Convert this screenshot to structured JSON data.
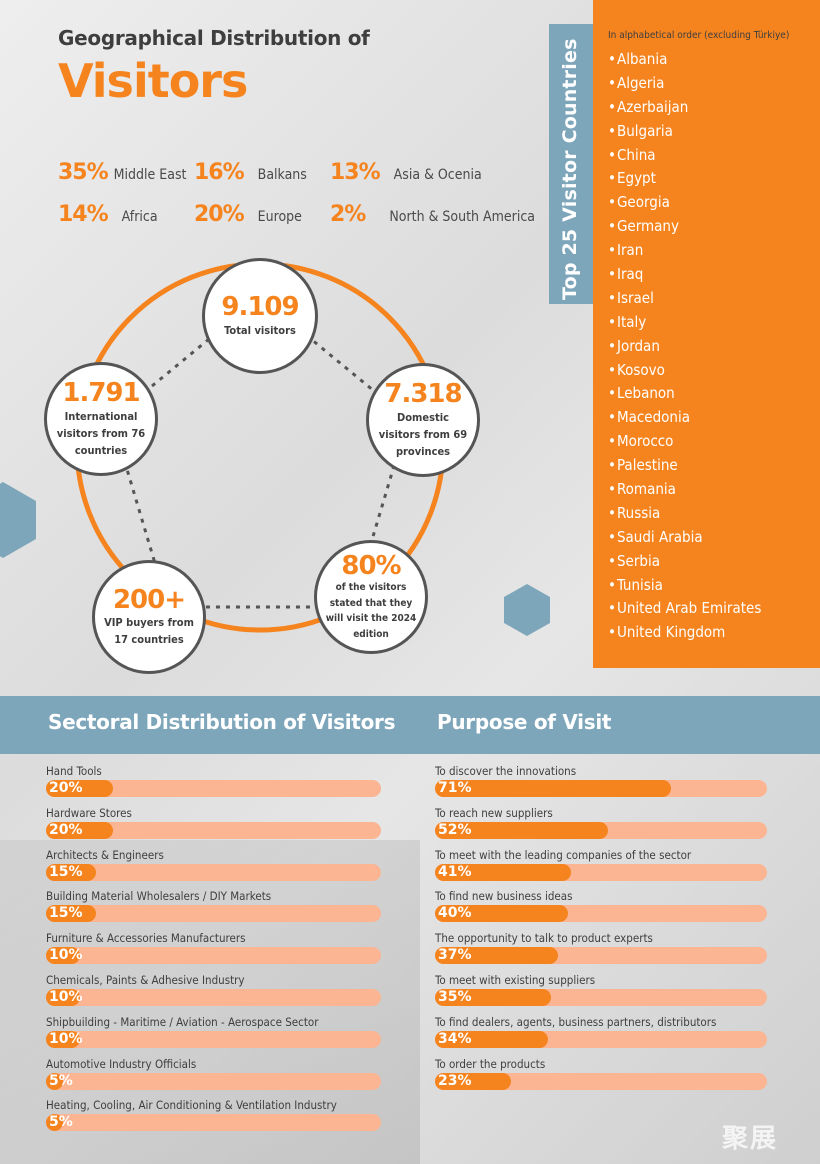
{
  "header": {
    "title_line1": "Geographical Distribution of",
    "title_line2": "Visitors"
  },
  "regions": [
    {
      "pct": "35%",
      "name": "Middle East"
    },
    {
      "pct": "16%",
      "name": "Balkans"
    },
    {
      "pct": "13%",
      "name": "Asia & Ocenia"
    },
    {
      "pct": "14%",
      "name": "Africa"
    },
    {
      "pct": "20%",
      "name": "Europe"
    },
    {
      "pct": "2%",
      "name": "North & South America"
    }
  ],
  "stats": [
    {
      "value": "9.109",
      "label": "Total visitors"
    },
    {
      "value": "7.318",
      "label": "Domestic visitors from 69 provinces"
    },
    {
      "value": "80%",
      "label": "of the visitors stated that they will visit the 2024 edition"
    },
    {
      "value": "200+",
      "label": "VIP buyers from 17 countries"
    },
    {
      "value": "1.791",
      "label": "International visitors from 76 countries"
    }
  ],
  "countries_panel": {
    "title": "Top 25 Visitor Countries",
    "note": "In alphabetical order (excluding Türkiye)",
    "countries": [
      "Albania",
      "Algeria",
      "Azerbaijan",
      "Bulgaria",
      "China",
      "Egypt",
      "Georgia",
      "Germany",
      "Iran",
      "Iraq",
      "Israel",
      "Italy",
      "Jordan",
      "Kosovo",
      "Lebanon",
      "Macedonia",
      "Morocco",
      "Palestine",
      "Romania",
      "Russia",
      "Saudi Arabia",
      "Serbia",
      "Tunisia",
      "United Arab Emirates",
      "United Kingdom"
    ]
  },
  "colors": {
    "accent": "#f5841f",
    "track": "#fbb592",
    "band": "#7ea6bb"
  },
  "chart_data": [
    {
      "type": "bar",
      "title": "Sectoral Distribution of Visitors",
      "categories": [
        "Hand Tools",
        "Hardware Stores",
        "Architects & Engineers",
        "Building Material Wholesalers / DIY Markets",
        "Furniture & Accessories Manufacturers",
        "Chemicals, Paints & Adhesive Industry",
        "Shipbuilding - Maritime / Aviation - Aerospace Sector",
        "Automotive Industry Officials",
        "Heating, Cooling, Air Conditioning & Ventilation Industry"
      ],
      "values": [
        20,
        20,
        15,
        15,
        10,
        10,
        10,
        5,
        5
      ],
      "value_labels": [
        "20%",
        "20%",
        "15%",
        "15%",
        "10%",
        "10%",
        "10%",
        "5%",
        "5%"
      ],
      "xlim": [
        0,
        100
      ]
    },
    {
      "type": "bar",
      "title": "Purpose of Visit",
      "categories": [
        "To discover the innovations",
        "To reach new suppliers",
        "To meet with the leading companies of the sector",
        "To find new business ideas",
        "The opportunity to talk to product experts",
        "To meet with existing suppliers",
        "To find dealers, agents, business partners, distributors",
        "To order the products"
      ],
      "values": [
        71,
        52,
        41,
        40,
        37,
        35,
        34,
        23
      ],
      "value_labels": [
        "71%",
        "52%",
        "41%",
        "40%",
        "37%",
        "35%",
        "34%",
        "23%"
      ],
      "xlim": [
        0,
        100
      ]
    }
  ],
  "watermark": "聚展"
}
